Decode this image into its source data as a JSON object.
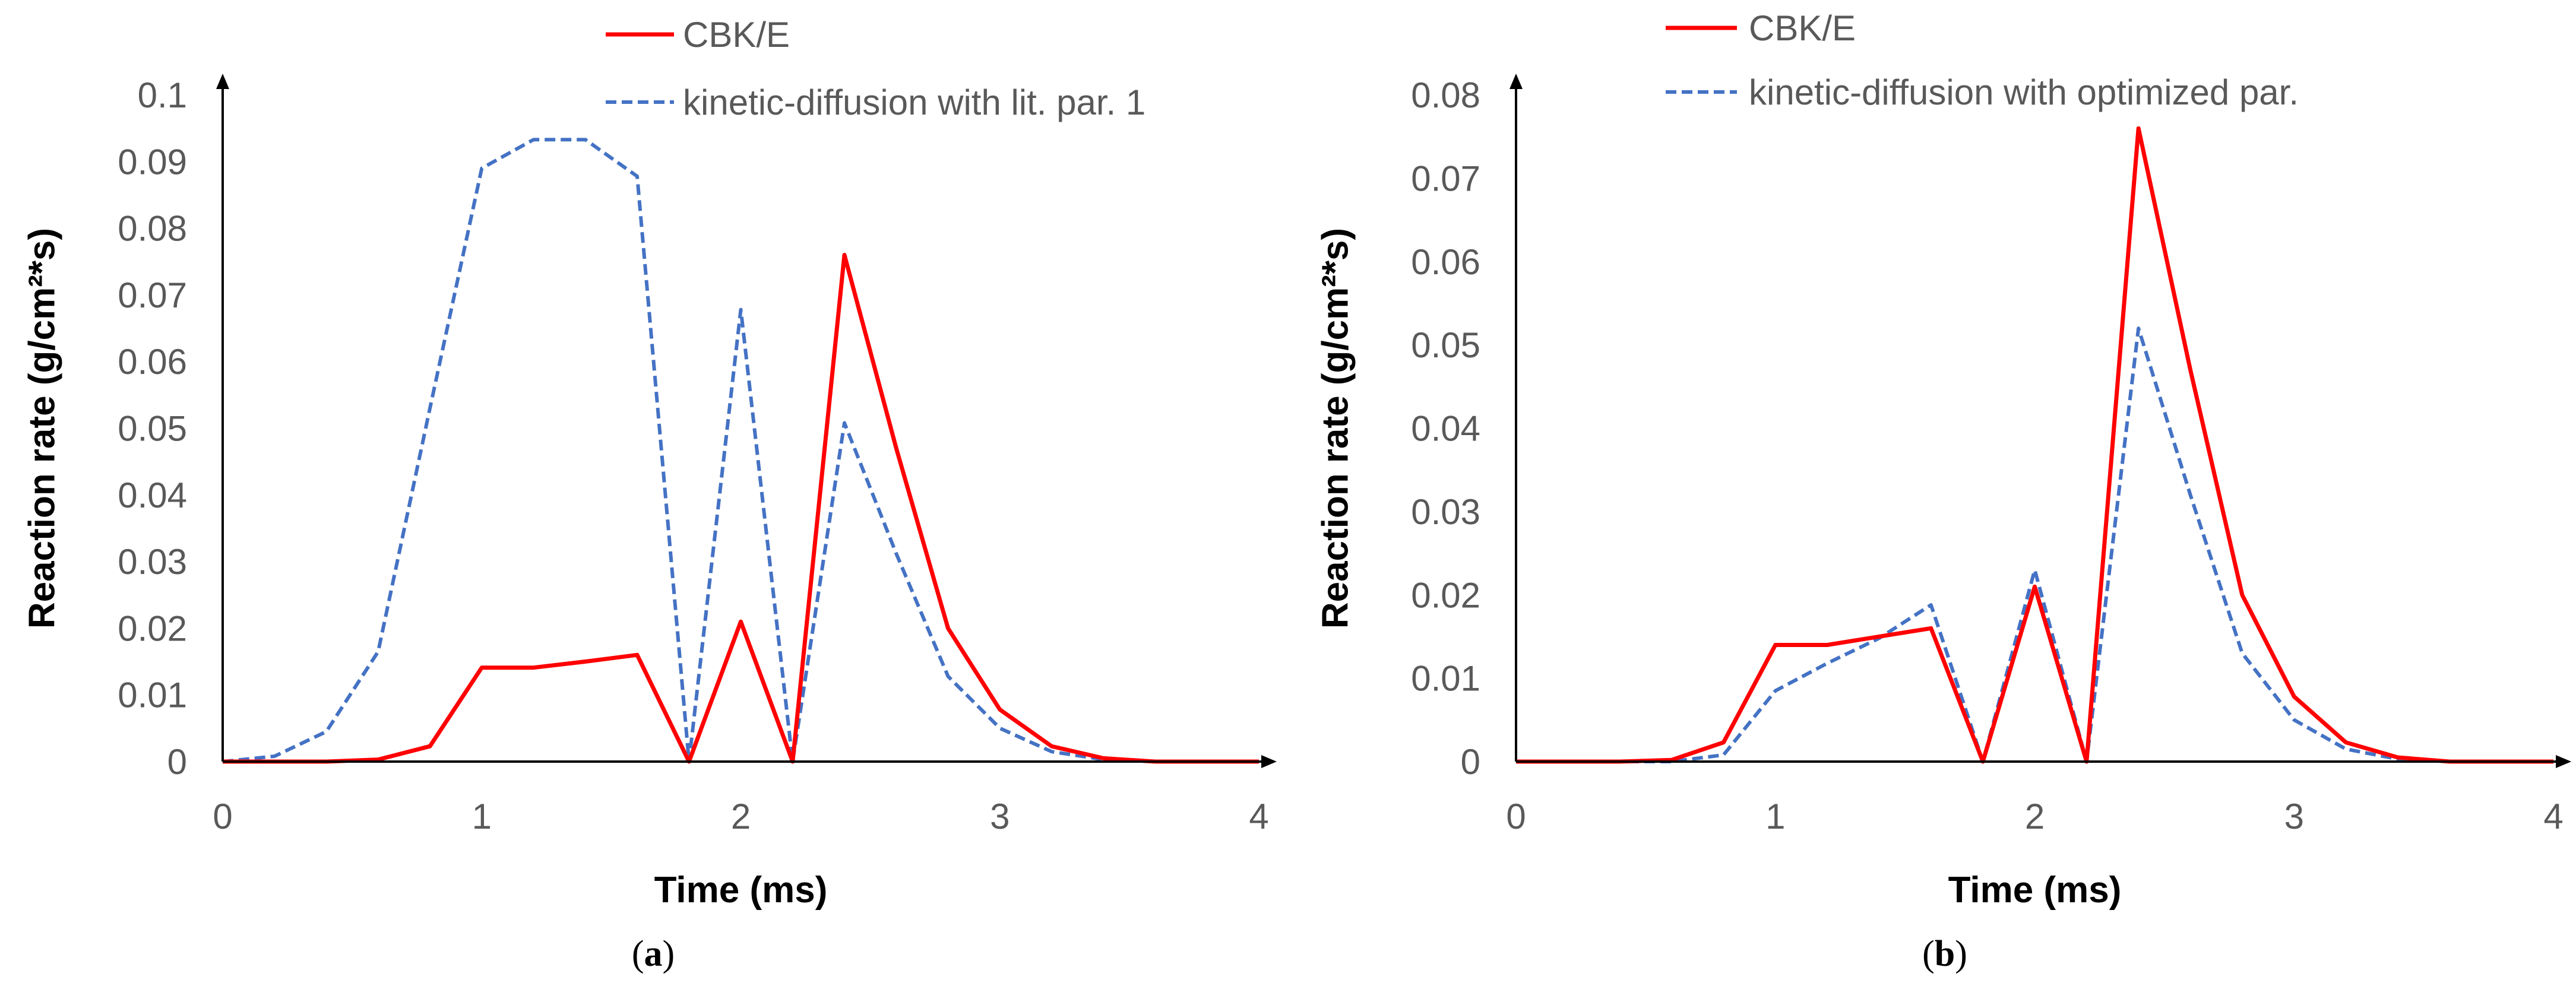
{
  "chart_data": [
    {
      "type": "line",
      "panel_label": "(a)",
      "panel_letter": "a",
      "xlabel": "Time (ms)",
      "ylabel": "Reaction rate (g/cm²*s)",
      "xlim": [
        0,
        4
      ],
      "ylim": [
        0,
        0.1
      ],
      "xticks": [
        "0",
        "1",
        "2",
        "3",
        "4"
      ],
      "yticks": [
        "0",
        "0.01",
        "0.02",
        "0.03",
        "0.04",
        "0.05",
        "0.06",
        "0.07",
        "0.08",
        "0.09",
        "0.1"
      ],
      "legend_position": "top",
      "series": [
        {
          "name": "CBK/E",
          "style": "solid",
          "color": "#ff0000",
          "x": [
            0,
            0.2,
            0.4,
            0.6,
            0.8,
            1.0,
            1.2,
            1.4,
            1.6,
            1.8,
            2.0,
            2.2,
            2.4,
            2.6,
            2.8,
            3.0,
            3.2,
            3.4,
            3.6,
            3.8,
            4.0
          ],
          "y": [
            0,
            0,
            0,
            0.0003,
            0.0023,
            0.0141,
            0.0141,
            0.015,
            0.016,
            0,
            0.021,
            0,
            0.076,
            0.047,
            0.02,
            0.0078,
            0.0023,
            0.0005,
            0,
            0,
            0
          ]
        },
        {
          "name": "kinetic-diffusion with lit. par. 1",
          "style": "dashed",
          "color": "#4472c4",
          "x": [
            0,
            0.2,
            0.4,
            0.6,
            0.8,
            1.0,
            1.2,
            1.4,
            1.6,
            1.8,
            2.0,
            2.2,
            2.4,
            2.6,
            2.8,
            3.0,
            3.2,
            3.4,
            3.6,
            3.8,
            4.0
          ],
          "y": [
            0,
            0.0008,
            0.0045,
            0.0165,
            0.053,
            0.089,
            0.0933,
            0.0933,
            0.0878,
            0,
            0.0678,
            0,
            0.0508,
            0.0312,
            0.0128,
            0.005,
            0.0015,
            0.0003,
            0,
            0,
            0
          ]
        }
      ]
    },
    {
      "type": "line",
      "panel_label": "(b)",
      "panel_letter": "b",
      "xlabel": "Time (ms)",
      "ylabel": "Reaction rate (g/cm²*s)",
      "xlim": [
        0,
        4
      ],
      "ylim": [
        0,
        0.08
      ],
      "xticks": [
        "0",
        "1",
        "2",
        "3",
        "4"
      ],
      "yticks": [
        "0",
        "0.01",
        "0.02",
        "0.03",
        "0.04",
        "0.05",
        "0.06",
        "0.07",
        "0.08"
      ],
      "legend_position": "top",
      "series": [
        {
          "name": "CBK/E",
          "style": "solid",
          "color": "#ff0000",
          "x": [
            0,
            0.2,
            0.4,
            0.6,
            0.8,
            1.0,
            1.2,
            1.4,
            1.6,
            1.8,
            2.0,
            2.2,
            2.4,
            2.6,
            2.8,
            3.0,
            3.2,
            3.4,
            3.6,
            3.8,
            4.0
          ],
          "y": [
            0,
            0,
            0,
            0.0002,
            0.0023,
            0.014,
            0.014,
            0.015,
            0.016,
            0,
            0.021,
            0,
            0.076,
            0.047,
            0.02,
            0.0078,
            0.0023,
            0.0005,
            0,
            0,
            0
          ]
        },
        {
          "name": "kinetic-diffusion with optimized par.",
          "style": "dashed",
          "color": "#4472c4",
          "x": [
            0,
            0.2,
            0.4,
            0.6,
            0.8,
            1.0,
            1.2,
            1.4,
            1.6,
            1.8,
            2.0,
            2.2,
            2.4,
            2.6,
            2.8,
            3.0,
            3.2,
            3.4,
            3.6,
            3.8,
            4.0
          ],
          "y": [
            0,
            0,
            0,
            0,
            0.0008,
            0.0085,
            0.0118,
            0.0148,
            0.0188,
            0,
            0.023,
            0,
            0.052,
            0.032,
            0.013,
            0.005,
            0.0015,
            0.0003,
            0,
            0,
            0
          ]
        }
      ]
    }
  ]
}
